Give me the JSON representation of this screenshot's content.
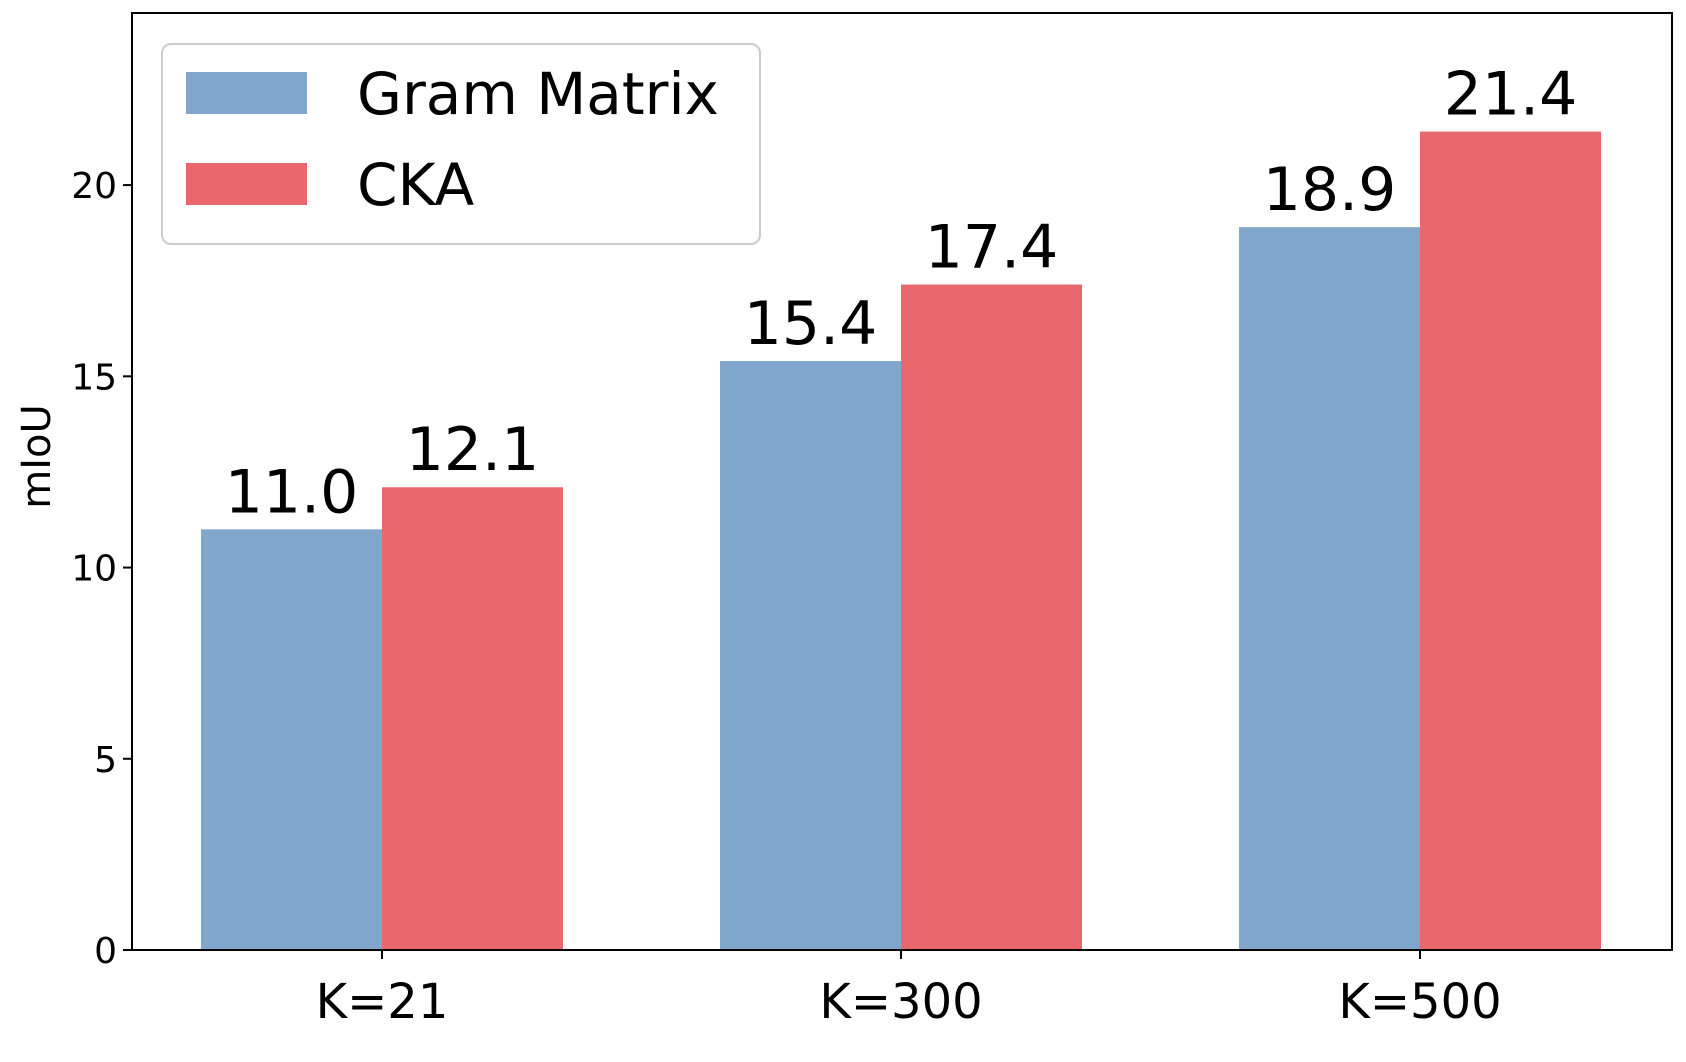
{
  "chart_data": {
    "type": "bar",
    "categories": [
      "K=21",
      "K=300",
      "K=500"
    ],
    "series": [
      {
        "name": "Gram Matrix",
        "values": [
          11.0,
          15.4,
          18.9
        ],
        "color": "#80a6cb",
        "labels": [
          "11.0",
          "15.4",
          "18.9"
        ]
      },
      {
        "name": "CKA",
        "values": [
          12.1,
          17.4,
          21.4
        ],
        "color": "#e8686e",
        "labels": [
          "12.1",
          "17.4",
          "21.4"
        ]
      }
    ],
    "xlabel": "",
    "ylabel": "mIoU",
    "ylim": [
      0,
      24.5
    ],
    "yticks": [
      0,
      5,
      10,
      15,
      20
    ],
    "ytick_labels": [
      "0",
      "5",
      "10",
      "15",
      "20"
    ],
    "grid": false,
    "legend": {
      "position": "top-left"
    }
  }
}
